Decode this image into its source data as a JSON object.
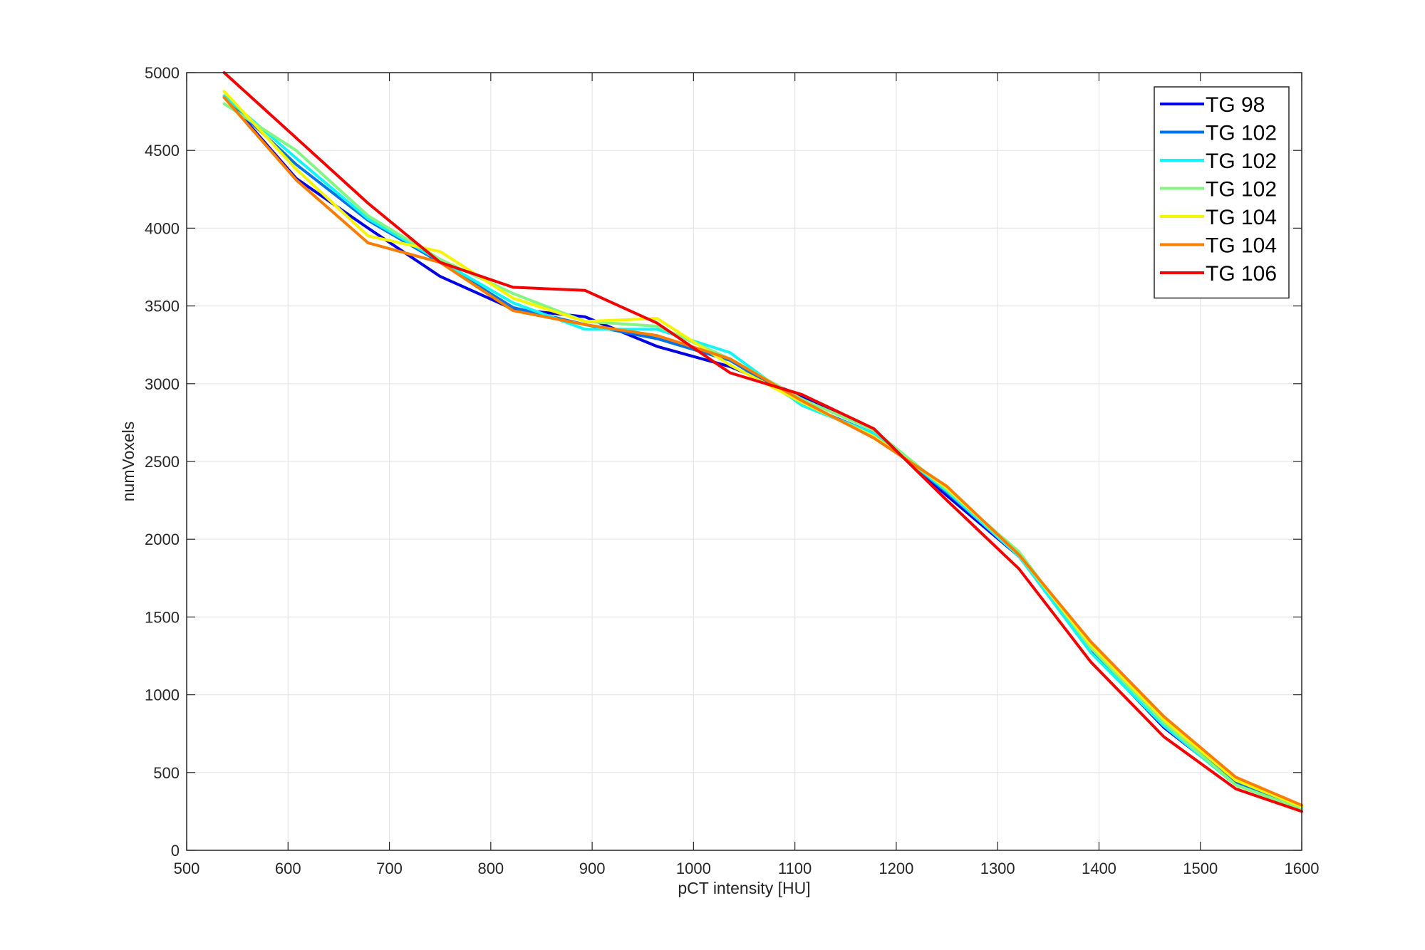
{
  "chart_data": {
    "type": "line",
    "title": "",
    "xlabel": "pCT intensity [HU]",
    "ylabel": "numVoxels",
    "xlim": [
      500,
      1600
    ],
    "ylim": [
      0,
      5000
    ],
    "xticks": [
      500,
      600,
      700,
      800,
      900,
      1000,
      1100,
      1200,
      1300,
      1400,
      1500,
      1600
    ],
    "yticks": [
      0,
      500,
      1000,
      1500,
      2000,
      2500,
      3000,
      3500,
      4000,
      4500,
      5000
    ],
    "grid": true,
    "legend_position": "top-right",
    "x": [
      537,
      608,
      679,
      750,
      822,
      893,
      964,
      1036,
      1107,
      1178,
      1250,
      1321,
      1392,
      1464,
      1535,
      1600
    ],
    "series": [
      {
        "name": "TG 98",
        "color": "#0000e6",
        "values": [
          4850,
          4320,
          4000,
          3690,
          3480,
          3430,
          3240,
          3110,
          2920,
          2700,
          2280,
          1890,
          1280,
          790,
          430,
          270
        ]
      },
      {
        "name": "TG 102",
        "color": "#0073e6",
        "values": [
          4840,
          4410,
          4050,
          3780,
          3490,
          3380,
          3290,
          3150,
          2870,
          2680,
          2300,
          1900,
          1300,
          810,
          440,
          270
        ]
      },
      {
        "name": "TG 102",
        "color": "#10f5f5",
        "values": [
          4850,
          4450,
          4060,
          3790,
          3520,
          3350,
          3350,
          3200,
          2860,
          2680,
          2310,
          1890,
          1270,
          800,
          420,
          265
        ]
      },
      {
        "name": "TG 102",
        "color": "#82f582",
        "values": [
          4800,
          4500,
          4080,
          3800,
          3580,
          3400,
          3370,
          3160,
          2900,
          2700,
          2320,
          1920,
          1300,
          820,
          420,
          265
        ]
      },
      {
        "name": "TG 104",
        "color": "#f5f500",
        "values": [
          4880,
          4380,
          3950,
          3850,
          3550,
          3400,
          3420,
          3120,
          2880,
          2660,
          2330,
          1900,
          1320,
          840,
          450,
          280
        ]
      },
      {
        "name": "TG 104",
        "color": "#fa7d00",
        "values": [
          4840,
          4310,
          3905,
          3780,
          3470,
          3380,
          3310,
          3160,
          2890,
          2650,
          2340,
          1900,
          1340,
          860,
          470,
          290
        ]
      },
      {
        "name": "TG 106",
        "color": "#f50000",
        "values": [
          5000,
          4580,
          4160,
          3780,
          3620,
          3600,
          3390,
          3070,
          2930,
          2710,
          2250,
          1810,
          1210,
          730,
          395,
          250
        ]
      }
    ]
  }
}
